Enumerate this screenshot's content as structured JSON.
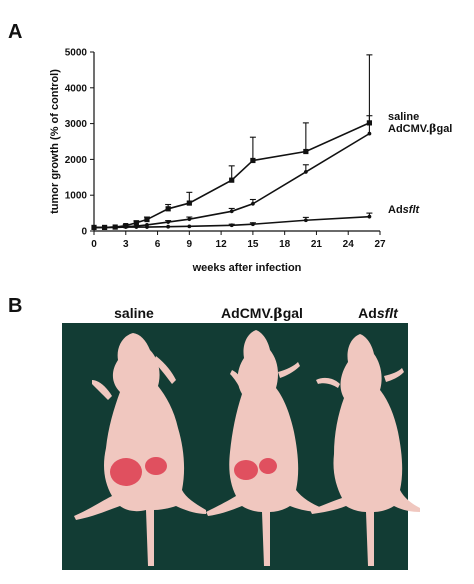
{
  "panel_a": {
    "letter": "A"
  },
  "panel_b": {
    "letter": "B",
    "labels": [
      {
        "id": "saline",
        "parts": [
          {
            "text": "saline"
          }
        ]
      },
      {
        "id": "adcmv",
        "parts": [
          {
            "text": "AdCMV."
          },
          {
            "text": "β",
            "symbol": true
          },
          {
            "text": "gal"
          }
        ]
      },
      {
        "id": "adsflt",
        "parts": [
          {
            "text": "Ad"
          },
          {
            "text": "sflt",
            "italic": true
          }
        ]
      }
    ],
    "photo": {
      "background_color": "#123c34",
      "skin_color": "#f0c7bf",
      "tumor_color": "#e0505f"
    }
  },
  "chart_data": {
    "type": "line",
    "xlabel": "weeks after infection",
    "ylabel": "tumor growth (% of control)",
    "xlim": [
      0,
      27
    ],
    "ylim": [
      0,
      5000
    ],
    "xticks": [
      0,
      3,
      6,
      9,
      12,
      15,
      18,
      21,
      24,
      27
    ],
    "yticks": [
      0,
      1000,
      2000,
      3000,
      4000,
      5000
    ],
    "grid": false,
    "legend": "right, labels at line ends",
    "series": [
      {
        "id": "saline",
        "name_parts": [
          {
            "text": "saline"
          }
        ],
        "marker": "square",
        "x": [
          0,
          1,
          2,
          3,
          4,
          5,
          7,
          9,
          13,
          15,
          20,
          26
        ],
        "y": [
          100,
          100,
          110,
          150,
          230,
          320,
          620,
          780,
          1420,
          1970,
          2220,
          3020
        ],
        "err": [
          0,
          0,
          0,
          30,
          50,
          70,
          120,
          300,
          400,
          650,
          800,
          1900
        ]
      },
      {
        "id": "adcmv",
        "name_parts": [
          {
            "text": "AdCMV."
          },
          {
            "text": "β",
            "symbol": true
          },
          {
            "text": "gal"
          }
        ],
        "marker": "dot",
        "x": [
          0,
          1,
          2,
          3,
          4,
          5,
          7,
          9,
          13,
          15,
          20,
          26
        ],
        "y": [
          100,
          100,
          110,
          120,
          140,
          170,
          250,
          330,
          550,
          760,
          1650,
          2720
        ],
        "err": [
          0,
          0,
          0,
          0,
          0,
          0,
          40,
          60,
          80,
          120,
          200,
          500
        ]
      },
      {
        "id": "adsflt",
        "name_parts": [
          {
            "text": "Ad"
          },
          {
            "text": "sflt",
            "italic": true
          }
        ],
        "marker": "dot",
        "x": [
          0,
          1,
          2,
          3,
          4,
          5,
          7,
          9,
          13,
          15,
          20,
          26
        ],
        "y": [
          100,
          100,
          100,
          110,
          110,
          110,
          120,
          130,
          160,
          190,
          300,
          400
        ],
        "err": [
          0,
          0,
          0,
          0,
          0,
          0,
          0,
          0,
          30,
          40,
          80,
          100
        ]
      }
    ],
    "colors": {
      "line": "#111111"
    }
  }
}
